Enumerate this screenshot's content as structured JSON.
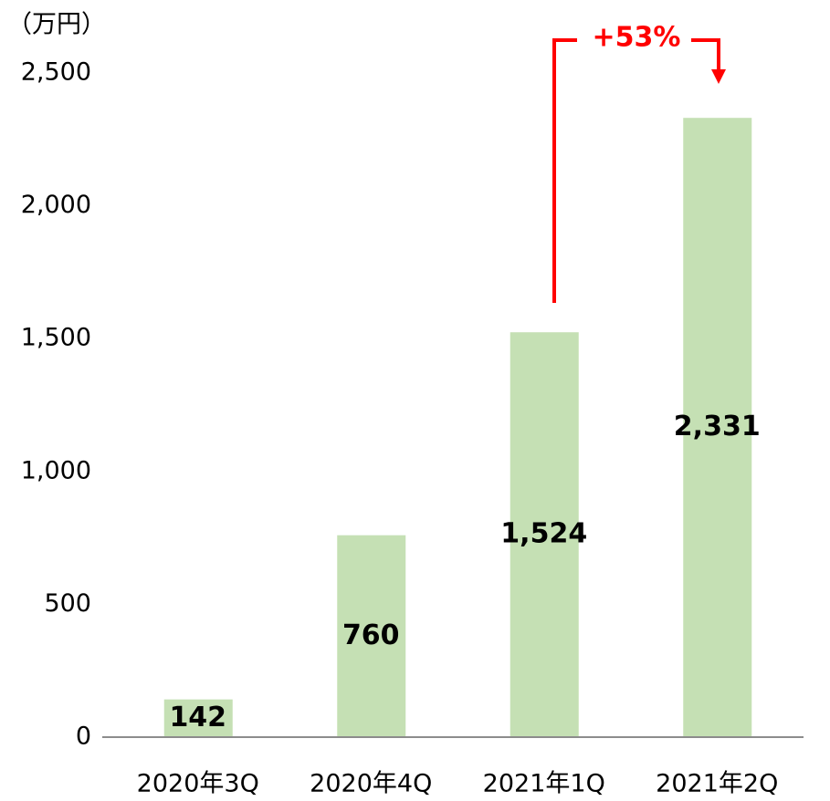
{
  "chart_data": {
    "type": "bar",
    "y_axis_label": "（万円）",
    "categories": [
      "2020年3Q",
      "2020年4Q",
      "2021年1Q",
      "2021年2Q"
    ],
    "values": [
      142,
      760,
      1524,
      2331
    ],
    "value_labels": [
      "142",
      "760",
      "1,524",
      "2,331"
    ],
    "color": "#c5e0b4",
    "ylim": [
      0,
      2500
    ],
    "yticks": [
      0,
      500,
      {
        "value": 1000,
        "label": "1,000"
      },
      {
        "value": 1500,
        "label": "1,500"
      },
      {
        "value": 2000,
        "label": "2,000"
      },
      {
        "value": 2500,
        "label": "2,500"
      }
    ],
    "grid": false,
    "annotation": "+53%",
    "annotation_color": "#ff0000"
  }
}
